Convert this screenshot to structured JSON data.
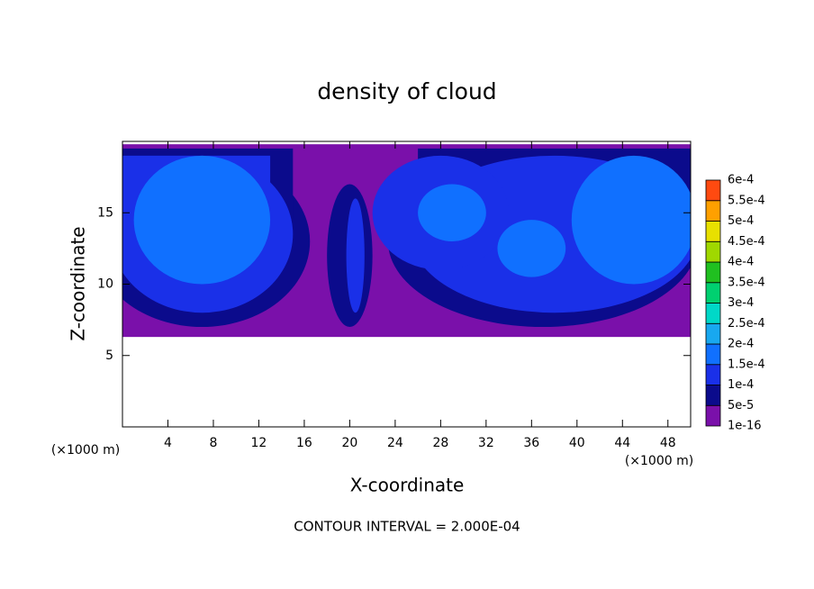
{
  "chart_data": {
    "type": "contour",
    "title": "density of cloud",
    "x_label": "X-coordinate",
    "y_label": "Z-coordinate",
    "x_unit": "(×1000 m)",
    "y_unit": "(×1000 m)",
    "xlim": [
      0,
      50
    ],
    "xticks": [
      4,
      8,
      12,
      16,
      20,
      24,
      28,
      32,
      36,
      40,
      44,
      48
    ],
    "ylim": [
      0,
      20
    ],
    "yticks": [
      5,
      10,
      15
    ],
    "colorbar": {
      "levels": [
        {
          "value": 1e-16,
          "label": "1e-16"
        },
        {
          "value": 5e-05,
          "label": "5e-5"
        },
        {
          "value": 0.0001,
          "label": "1e-4"
        },
        {
          "value": 0.00015,
          "label": "1.5e-4"
        },
        {
          "value": 0.0002,
          "label": "2e-4"
        },
        {
          "value": 0.00025,
          "label": "2.5e-4"
        },
        {
          "value": 0.0003,
          "label": "3e-4"
        },
        {
          "value": 0.00035,
          "label": "3.5e-4"
        },
        {
          "value": 0.0004,
          "label": "4e-4"
        },
        {
          "value": 0.00045,
          "label": "4.5e-4"
        },
        {
          "value": 0.0005,
          "label": "5e-4"
        },
        {
          "value": 0.00055,
          "label": "5.5e-4"
        },
        {
          "value": 0.0006,
          "label": "6e-4"
        }
      ],
      "colors": [
        "#7a10aa",
        "#0b0b8c",
        "#1a30e8",
        "#1070ff",
        "#18a8f0",
        "#00d8c8",
        "#00d070",
        "#20c020",
        "#a0d800",
        "#e8e000",
        "#ffa000",
        "#ff4a10",
        "#f08a8a"
      ]
    },
    "footnote": "CONTOUR INTERVAL = 2.000E-04"
  }
}
